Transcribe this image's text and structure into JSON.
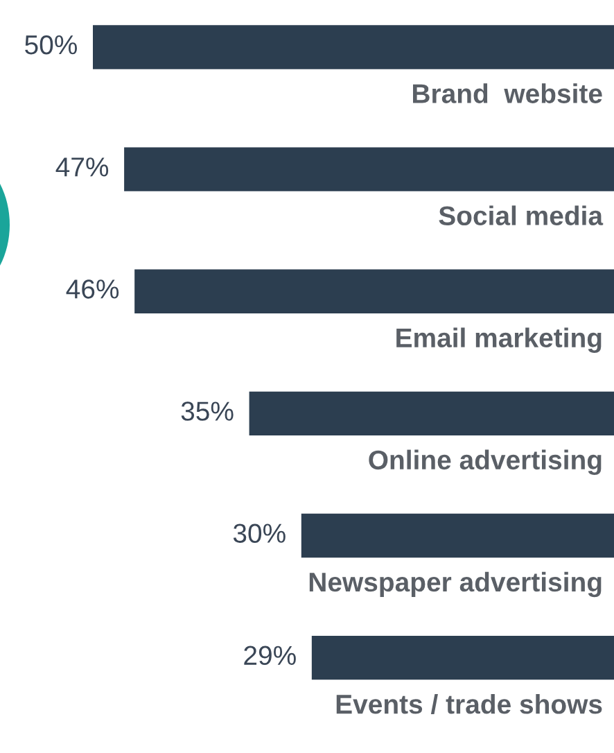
{
  "chart_data": {
    "type": "bar",
    "orientation": "horizontal",
    "categories": [
      "Brand  website",
      "Social media",
      "Email marketing",
      "Online advertising",
      "Newspaper advertising",
      "Events / trade shows"
    ],
    "values": [
      50,
      47,
      46,
      35,
      30,
      29
    ],
    "value_labels": [
      "50%",
      "47%",
      "46%",
      "35%",
      "30%",
      "29%"
    ],
    "color": "#2c3e50"
  }
}
